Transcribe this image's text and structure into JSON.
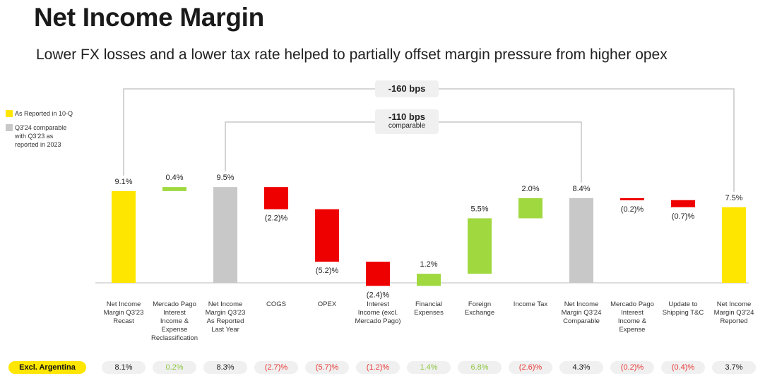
{
  "title": "Net Income Margin",
  "subtitle": "Lower FX losses and a lower tax rate helped to partially offset margin pressure from higher opex",
  "legend": [
    {
      "label": "As Reported in 10-Q",
      "color": "#ffe600"
    },
    {
      "label": "Q3'24 comparable with Q3'23 as reported in 2023",
      "color": "#c8c8c8"
    }
  ],
  "brackets": {
    "outer": {
      "label": "-160 bps"
    },
    "inner": {
      "label": "-110 bps",
      "sublabel": "comparable"
    }
  },
  "excl_argentina": {
    "label": "Excl. Argentina",
    "values": [
      "8.1%",
      "0.2%",
      "8.3%",
      "(2.7)%",
      "(5.7)%",
      "(1.2)%",
      "1.4%",
      "6.8%",
      "(2.6)%",
      "4.3%",
      "(0.2)%",
      "(0.4)%",
      "3.7%"
    ],
    "colors": [
      "#222222",
      "#8cc63f",
      "#222222",
      "#e53935",
      "#e53935",
      "#e53935",
      "#8cc63f",
      "#8cc63f",
      "#e53935",
      "#222222",
      "#e53935",
      "#e53935",
      "#222222"
    ]
  },
  "colors": {
    "yellow": "#ffe600",
    "gray": "#c8c8c8",
    "green": "#a0d840",
    "red": "#ee0000"
  },
  "chart_data": {
    "type": "waterfall",
    "title": "Net Income Margin",
    "ylim": [
      0,
      10
    ],
    "categories": [
      "Net Income Margin Q3'23 Recast",
      "Mercado Pago Interest Income & Expense Reclassification",
      "Net Income Margin Q3'23 As Reported Last Year",
      "COGS",
      "OPEX",
      "Interest Income (excl. Mercado Pago)",
      "Financial Expenses",
      "Foreign Exchange",
      "Income Tax",
      "Net Income Margin Q3'24 Comparable",
      "Mercado Pago Interest Income & Expense",
      "Update to Shipping T&C",
      "Net Income Margin Q3'24 Reported"
    ],
    "values": [
      9.1,
      0.4,
      9.5,
      -2.2,
      -5.2,
      -2.4,
      1.2,
      5.5,
      2.0,
      8.4,
      -0.2,
      -0.7,
      7.5
    ],
    "kinds": [
      "total",
      "delta",
      "total",
      "delta",
      "delta",
      "delta",
      "delta",
      "delta",
      "delta",
      "total",
      "delta",
      "delta",
      "total"
    ],
    "bar_colors": [
      "#ffe600",
      "#a0d840",
      "#c8c8c8",
      "#ee0000",
      "#ee0000",
      "#ee0000",
      "#a0d840",
      "#a0d840",
      "#a0d840",
      "#c8c8c8",
      "#ee0000",
      "#ee0000",
      "#ffe600"
    ],
    "data_labels": [
      "9.1%",
      "0.4%",
      "9.5%",
      "(2.2)%",
      "(5.2)%",
      "(2.4)%",
      "1.2%",
      "5.5%",
      "2.0%",
      "8.4%",
      "(0.2)%",
      "(0.7)%",
      "7.5%"
    ]
  }
}
